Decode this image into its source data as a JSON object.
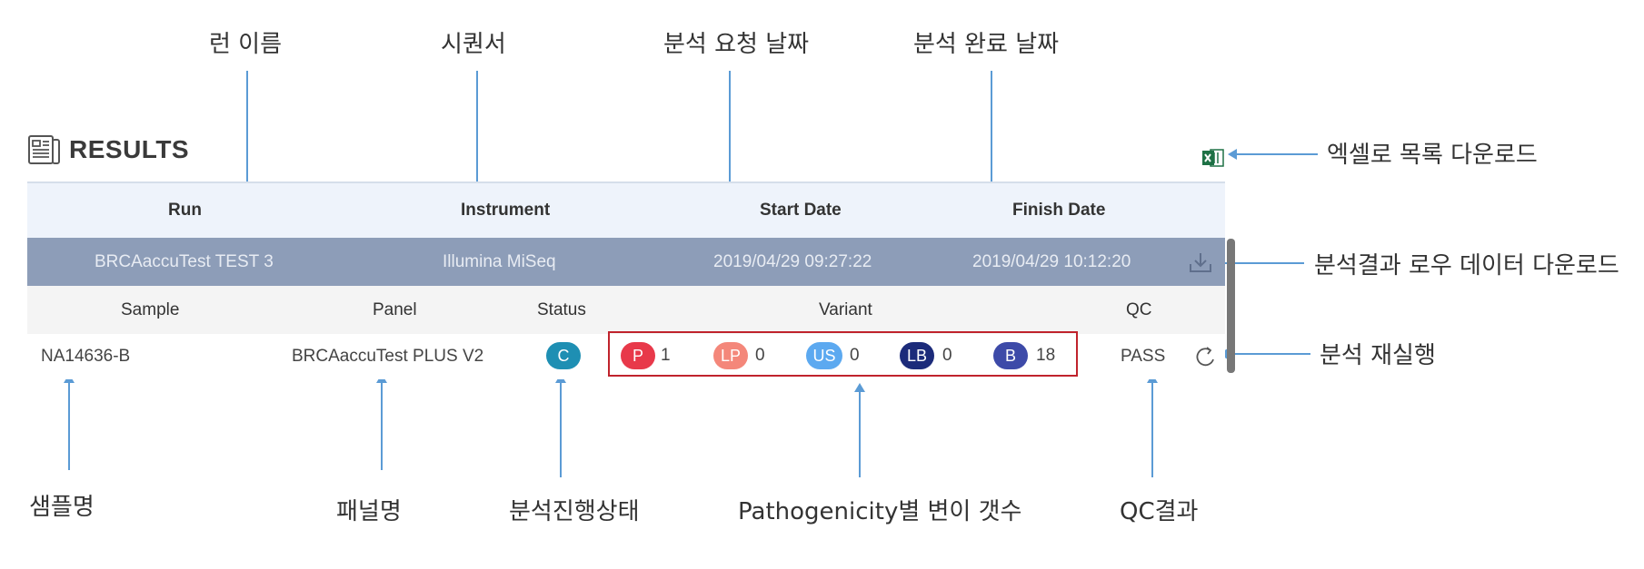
{
  "annotations": {
    "run_name": "런 이름",
    "sequencer": "시퀀서",
    "request_date": "분석 요청 날짜",
    "finish_date": "분석 완료 날짜",
    "excel_download": "엑셀로 목록 다운로드",
    "raw_download": "분석결과 로우 데이터 다운로드",
    "rerun": "분석 재실행",
    "sample_name": "샘플명",
    "panel_name": "패널명",
    "analysis_status": "분석진행상태",
    "variant_count": "Pathogenicity별 변이 갯수",
    "qc_result": "QC결과"
  },
  "results": {
    "title": "RESULTS",
    "headers": {
      "run": "Run",
      "instrument": "Instrument",
      "start_date": "Start Date",
      "finish_date": "Finish Date"
    },
    "run": {
      "name": "BRCAaccuTest TEST 3",
      "instrument": "Illumina MiSeq",
      "start_date": "2019/04/29 09:27:22",
      "finish_date": "2019/04/29 10:12:20"
    },
    "sub_headers": {
      "sample": "Sample",
      "panel": "Panel",
      "status": "Status",
      "variant": "Variant",
      "qc": "QC"
    },
    "sample": {
      "name": "NA14636-B",
      "panel": "BRCAaccuTest PLUS V2",
      "status": "C",
      "qc": "PASS"
    },
    "variants": [
      {
        "label": "P",
        "count": "1",
        "color": "#e8394a"
      },
      {
        "label": "LP",
        "count": "0",
        "color": "#f4877a"
      },
      {
        "label": "US",
        "count": "0",
        "color": "#5ca9f0"
      },
      {
        "label": "LB",
        "count": "0",
        "color": "#1c2b7a"
      },
      {
        "label": "B",
        "count": "18",
        "color": "#3d4aa8"
      }
    ]
  },
  "icons": {
    "results": "document-list-icon",
    "excel": "excel-icon",
    "download": "download-icon",
    "rerun": "refresh-icon"
  }
}
